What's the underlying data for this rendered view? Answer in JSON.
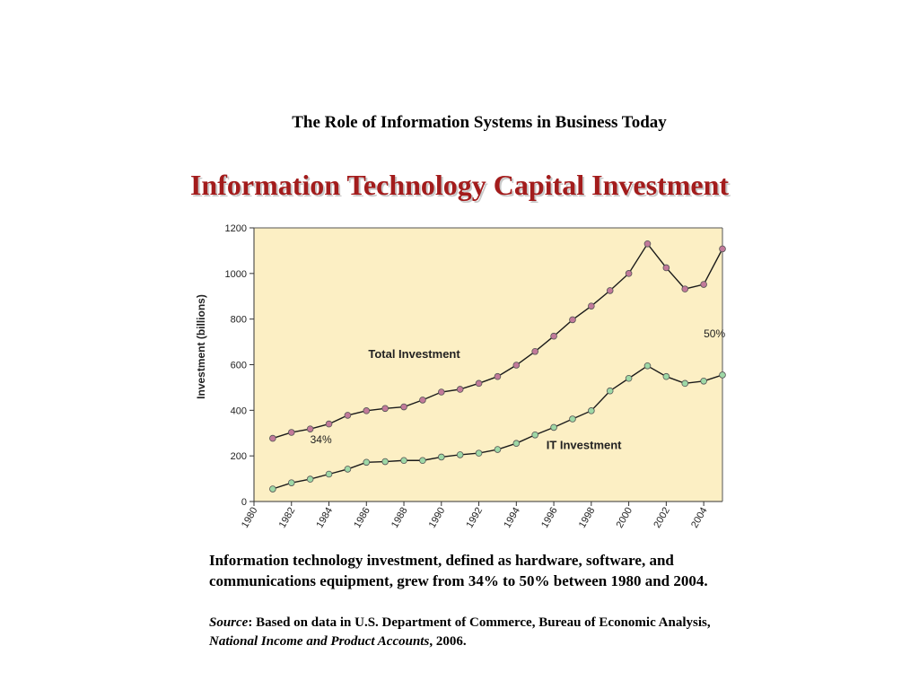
{
  "header": {
    "subtitle": "The Role of Information Systems in Business Today"
  },
  "slide": {
    "title": "Information Technology Capital Investment"
  },
  "caption": {
    "text": "Information technology investment, defined as hardware, software, and communications equipment, grew from 34% to 50% between 1980 and 2004."
  },
  "source": {
    "label": "Source",
    "text_1": ": Based on data in U.S. Department of Commerce, Bureau of Economic Analysis, ",
    "publication": "National Income and Product Accounts",
    "text_2": ", 2006."
  },
  "chart_data": {
    "type": "line",
    "title": "",
    "xlabel": "",
    "ylabel": "Investment (billions)",
    "xlim": [
      1980,
      2005
    ],
    "ylim": [
      0,
      1200
    ],
    "xticks": [
      1980,
      1982,
      1984,
      1986,
      1988,
      1990,
      1992,
      1994,
      1996,
      1998,
      2000,
      2002,
      2004
    ],
    "yticks": [
      0,
      200,
      400,
      600,
      800,
      1000,
      1200
    ],
    "grid": false,
    "background": "#fcefc4",
    "x": [
      1981,
      1982,
      1983,
      1984,
      1985,
      1986,
      1987,
      1988,
      1989,
      1990,
      1991,
      1992,
      1993,
      1994,
      1995,
      1996,
      1997,
      1998,
      1999,
      2000,
      2001,
      2002,
      2003,
      2004,
      2005
    ],
    "series": [
      {
        "name": "Total Investment",
        "color": "#c27a9a",
        "values": [
          277,
          303,
          318,
          340,
          378,
          398,
          408,
          415,
          445,
          480,
          492,
          518,
          548,
          598,
          658,
          725,
          797,
          857,
          925,
          1000,
          1130,
          1025,
          932,
          952,
          1108
        ]
      },
      {
        "name": "IT Investment",
        "color": "#9ed8a6",
        "values": [
          55,
          82,
          98,
          120,
          142,
          172,
          175,
          180,
          180,
          195,
          205,
          212,
          228,
          255,
          292,
          325,
          362,
          398,
          485,
          540,
          595,
          548,
          518,
          528,
          555
        ]
      }
    ],
    "annotations": [
      {
        "text": "34%",
        "x": 1983,
        "y": 255
      },
      {
        "text": "50%",
        "x": 2004,
        "y": 720
      }
    ]
  }
}
